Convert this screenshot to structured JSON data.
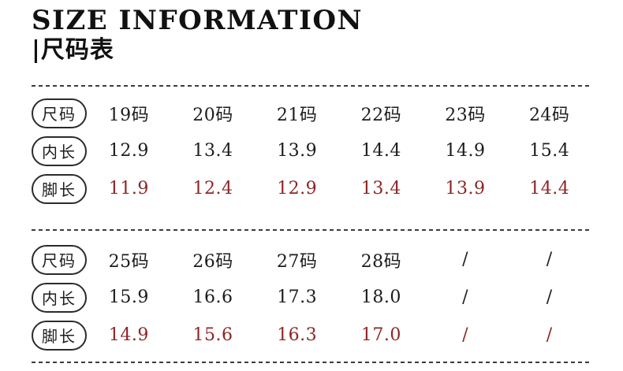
{
  "header": {
    "title": "SIZE INFORMATION",
    "subtitle": "|尺码表"
  },
  "colors": {
    "text": "#1c1c1c",
    "highlight_red": "#8e2525",
    "divider": "#3c3c3c"
  },
  "tables": [
    {
      "rows": [
        {
          "label": "尺码",
          "highlight": false,
          "values": [
            "19码",
            "20码",
            "21码",
            "22码",
            "23码",
            "24码"
          ]
        },
        {
          "label": "内长",
          "highlight": false,
          "values": [
            "12.9",
            "13.4",
            "13.9",
            "14.4",
            "14.9",
            "15.4"
          ]
        },
        {
          "label": "脚长",
          "highlight": true,
          "values": [
            "11.9",
            "12.4",
            "12.9",
            "13.4",
            "13.9",
            "14.4"
          ]
        }
      ]
    },
    {
      "rows": [
        {
          "label": "尺码",
          "highlight": false,
          "values": [
            "25码",
            "26码",
            "27码",
            "28码",
            "/",
            "/"
          ]
        },
        {
          "label": "内长",
          "highlight": false,
          "values": [
            "15.9",
            "16.6",
            "17.3",
            "18.0",
            "/",
            "/"
          ]
        },
        {
          "label": "脚长",
          "highlight": true,
          "values": [
            "14.9",
            "15.6",
            "16.3",
            "17.0",
            "/",
            "/"
          ]
        }
      ]
    }
  ],
  "chart_data": {
    "type": "table",
    "title": "SIZE INFORMATION |尺码表",
    "row_headers": [
      "尺码",
      "内长",
      "脚长"
    ],
    "columns": [
      "19码",
      "20码",
      "21码",
      "22码",
      "23码",
      "24码",
      "25码",
      "26码",
      "27码",
      "28码"
    ],
    "rows": {
      "尺码": [
        "19码",
        "20码",
        "21码",
        "22码",
        "23码",
        "24码",
        "25码",
        "26码",
        "27码",
        "28码"
      ],
      "内长": [
        12.9,
        13.4,
        13.9,
        14.4,
        14.9,
        15.4,
        15.9,
        16.6,
        17.3,
        18.0
      ],
      "脚长": [
        11.9,
        12.4,
        12.9,
        13.4,
        13.9,
        14.4,
        14.9,
        15.6,
        16.3,
        17.0
      ]
    }
  }
}
